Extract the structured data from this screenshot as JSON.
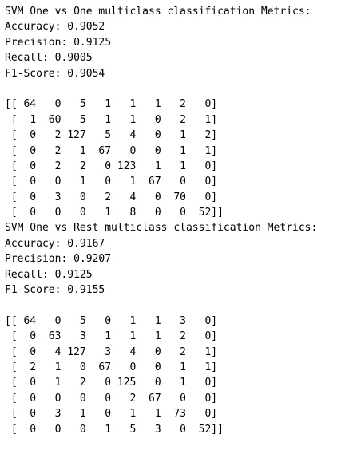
{
  "report_ovo": {
    "title": "SVM One vs One multiclass classification Metrics:",
    "accuracy": "Accuracy: 0.9052",
    "precision": "Precision: 0.9125",
    "recall": "Recall: 0.9005",
    "f1": "F1-Score: 0.9054",
    "matrix_rows": [
      "[[ 64   0   5   1   1   1   2   0]",
      " [  1  60   5   1   1   0   2   1]",
      " [  0   2 127   5   4   0   1   2]",
      " [  0   2   1  67   0   0   1   1]",
      " [  0   2   2   0 123   1   1   0]",
      " [  0   0   1   0   1  67   0   0]",
      " [  0   3   0   2   4   0  70   0]",
      " [  0   0   0   1   8   0   0  52]]"
    ]
  },
  "report_ovr": {
    "title": "SVM One vs Rest multiclass classification Metrics:",
    "accuracy": "Accuracy: 0.9167",
    "precision": "Precision: 0.9207",
    "recall": "Recall: 0.9125",
    "f1": "F1-Score: 0.9155",
    "matrix_rows": [
      "[[ 64   0   5   0   1   1   3   0]",
      " [  0  63   3   1   1   1   2   0]",
      " [  0   4 127   3   4   0   2   1]",
      " [  2   1   0  67   0   0   1   1]",
      " [  0   1   2   0 125   0   1   0]",
      " [  0   0   0   0   2  67   0   0]",
      " [  0   3   1   0   1   1  73   0]",
      " [  0   0   0   1   5   3   0  52]]"
    ]
  }
}
